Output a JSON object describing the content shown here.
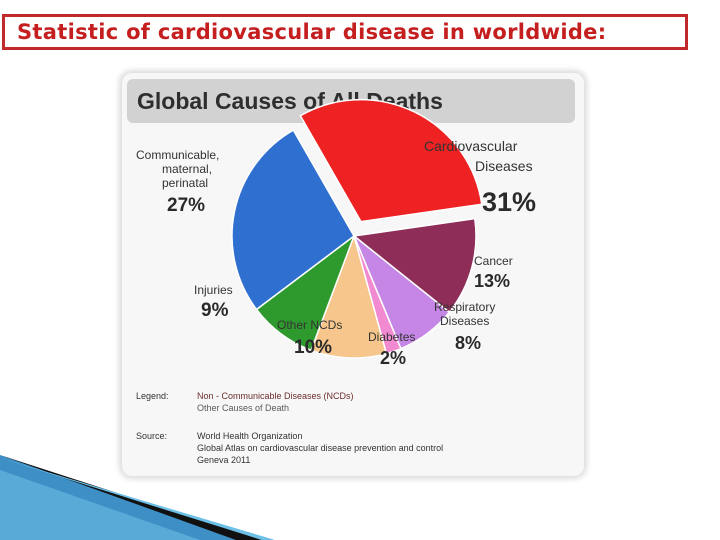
{
  "slide": {
    "title": "Statistic of cardiovascular disease in worldwide:"
  },
  "colors": {
    "title_text": "#c41e1e",
    "title_border": "#c0282a",
    "cardiovascular": "#ee2222",
    "communicable": "#2f6fd0",
    "injuries": "#2e9a2e",
    "other_ncds": "#f6c68c",
    "diabetes": "#f28ad2",
    "respiratory": "#c586e6",
    "cancer": "#8e2e58"
  },
  "chart_data": {
    "type": "pie",
    "title": "Global Causes of All Deaths",
    "slices": [
      {
        "label": "Cardiovascular Diseases",
        "value": 31,
        "value_label": "31%",
        "color": "#ee2222",
        "exploded": true
      },
      {
        "label": "Cancer",
        "value": 13,
        "value_label": "13%",
        "color": "#8e2e58",
        "exploded": false
      },
      {
        "label": "Respiratory Diseases",
        "value": 8,
        "value_label": "8%",
        "color": "#c586e6",
        "exploded": false
      },
      {
        "label": "Diabetes",
        "value": 2,
        "value_label": "2%",
        "color": "#f28ad2",
        "exploded": false
      },
      {
        "label": "Other NCDs",
        "value": 10,
        "value_label": "10%",
        "color": "#f6c68c",
        "exploded": false
      },
      {
        "label": "Injuries",
        "value": 9,
        "value_label": "9%",
        "color": "#2e9a2e",
        "exploded": false
      },
      {
        "label": "Communicable, maternal, perinatal",
        "value": 27,
        "value_label": "27%",
        "color": "#2f6fd0",
        "exploded": false
      }
    ],
    "legend": {
      "label": "Legend:",
      "entries": [
        "Non - Communicable Diseases (NCDs)",
        "Other Causes of Death"
      ]
    },
    "source": {
      "label": "Source:",
      "lines": [
        "World Health Organization",
        "Global Atlas on cardiovascular disease prevention and control",
        "Geneva 2011"
      ]
    }
  }
}
